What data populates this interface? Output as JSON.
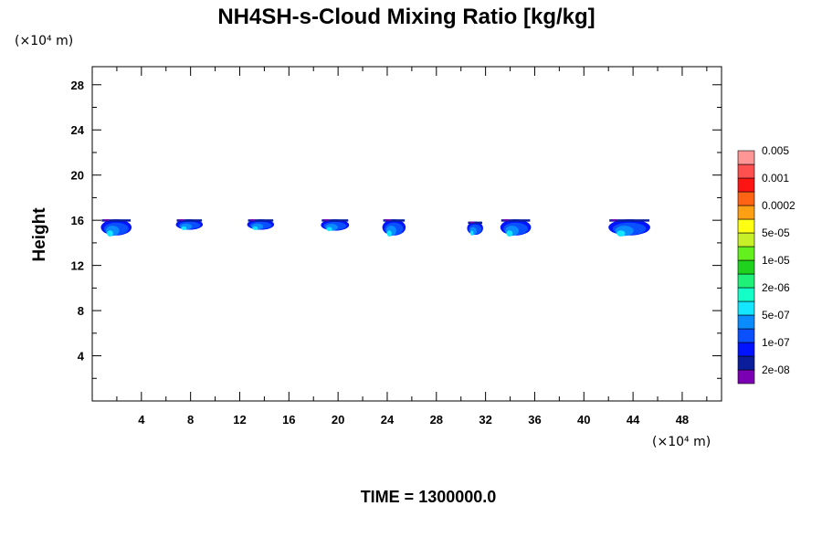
{
  "chart_data": {
    "type": "heatmap",
    "title": "NH4SH-s-Cloud Mixing Ratio [kg/kg]",
    "ylabel": "Height",
    "x_unit": "(×10⁴ m)",
    "y_unit": "(×10⁴ m)",
    "xlim": [
      0,
      51.2
    ],
    "ylim": [
      0,
      29.6
    ],
    "x_ticks": [
      4,
      8,
      12,
      16,
      20,
      24,
      28,
      32,
      36,
      40,
      44,
      48
    ],
    "y_ticks": [
      4,
      8,
      12,
      16,
      20,
      24,
      28
    ],
    "time_label": "TIME = 1300000.0",
    "colorbar": {
      "colors": [
        "#7b00b4",
        "#0a1e9c",
        "#0014ff",
        "#0a50ff",
        "#0a8cff",
        "#14e6ff",
        "#14ffc8",
        "#1ef078",
        "#1ed21e",
        "#64f01e",
        "#c8f028",
        "#ffff14",
        "#ffa014",
        "#ff6414",
        "#ff1414",
        "#ff5050",
        "#ff9696"
      ],
      "labels": [
        "2e-08",
        "1e-07",
        "5e-07",
        "2e-06",
        "1e-05",
        "5e-05",
        "0.0002",
        "0.001",
        "0.005"
      ]
    },
    "cloud_layer": [
      {
        "x_min": 0.7,
        "x_max": 3.2,
        "y_min": 14.5,
        "y_max": 16.0
      },
      {
        "x_min": 6.8,
        "x_max": 9.0,
        "y_min": 15.1,
        "y_max": 16.0
      },
      {
        "x_min": 12.6,
        "x_max": 14.8,
        "y_min": 15.1,
        "y_max": 16.0
      },
      {
        "x_min": 18.6,
        "x_max": 20.9,
        "y_min": 15.0,
        "y_max": 16.0
      },
      {
        "x_min": 23.6,
        "x_max": 25.5,
        "y_min": 14.5,
        "y_max": 16.0
      },
      {
        "x_min": 30.5,
        "x_max": 31.8,
        "y_min": 14.6,
        "y_max": 15.8
      },
      {
        "x_min": 33.2,
        "x_max": 35.7,
        "y_min": 14.5,
        "y_max": 16.0
      },
      {
        "x_min": 42.0,
        "x_max": 45.4,
        "y_min": 14.5,
        "y_max": 16.0
      }
    ]
  }
}
